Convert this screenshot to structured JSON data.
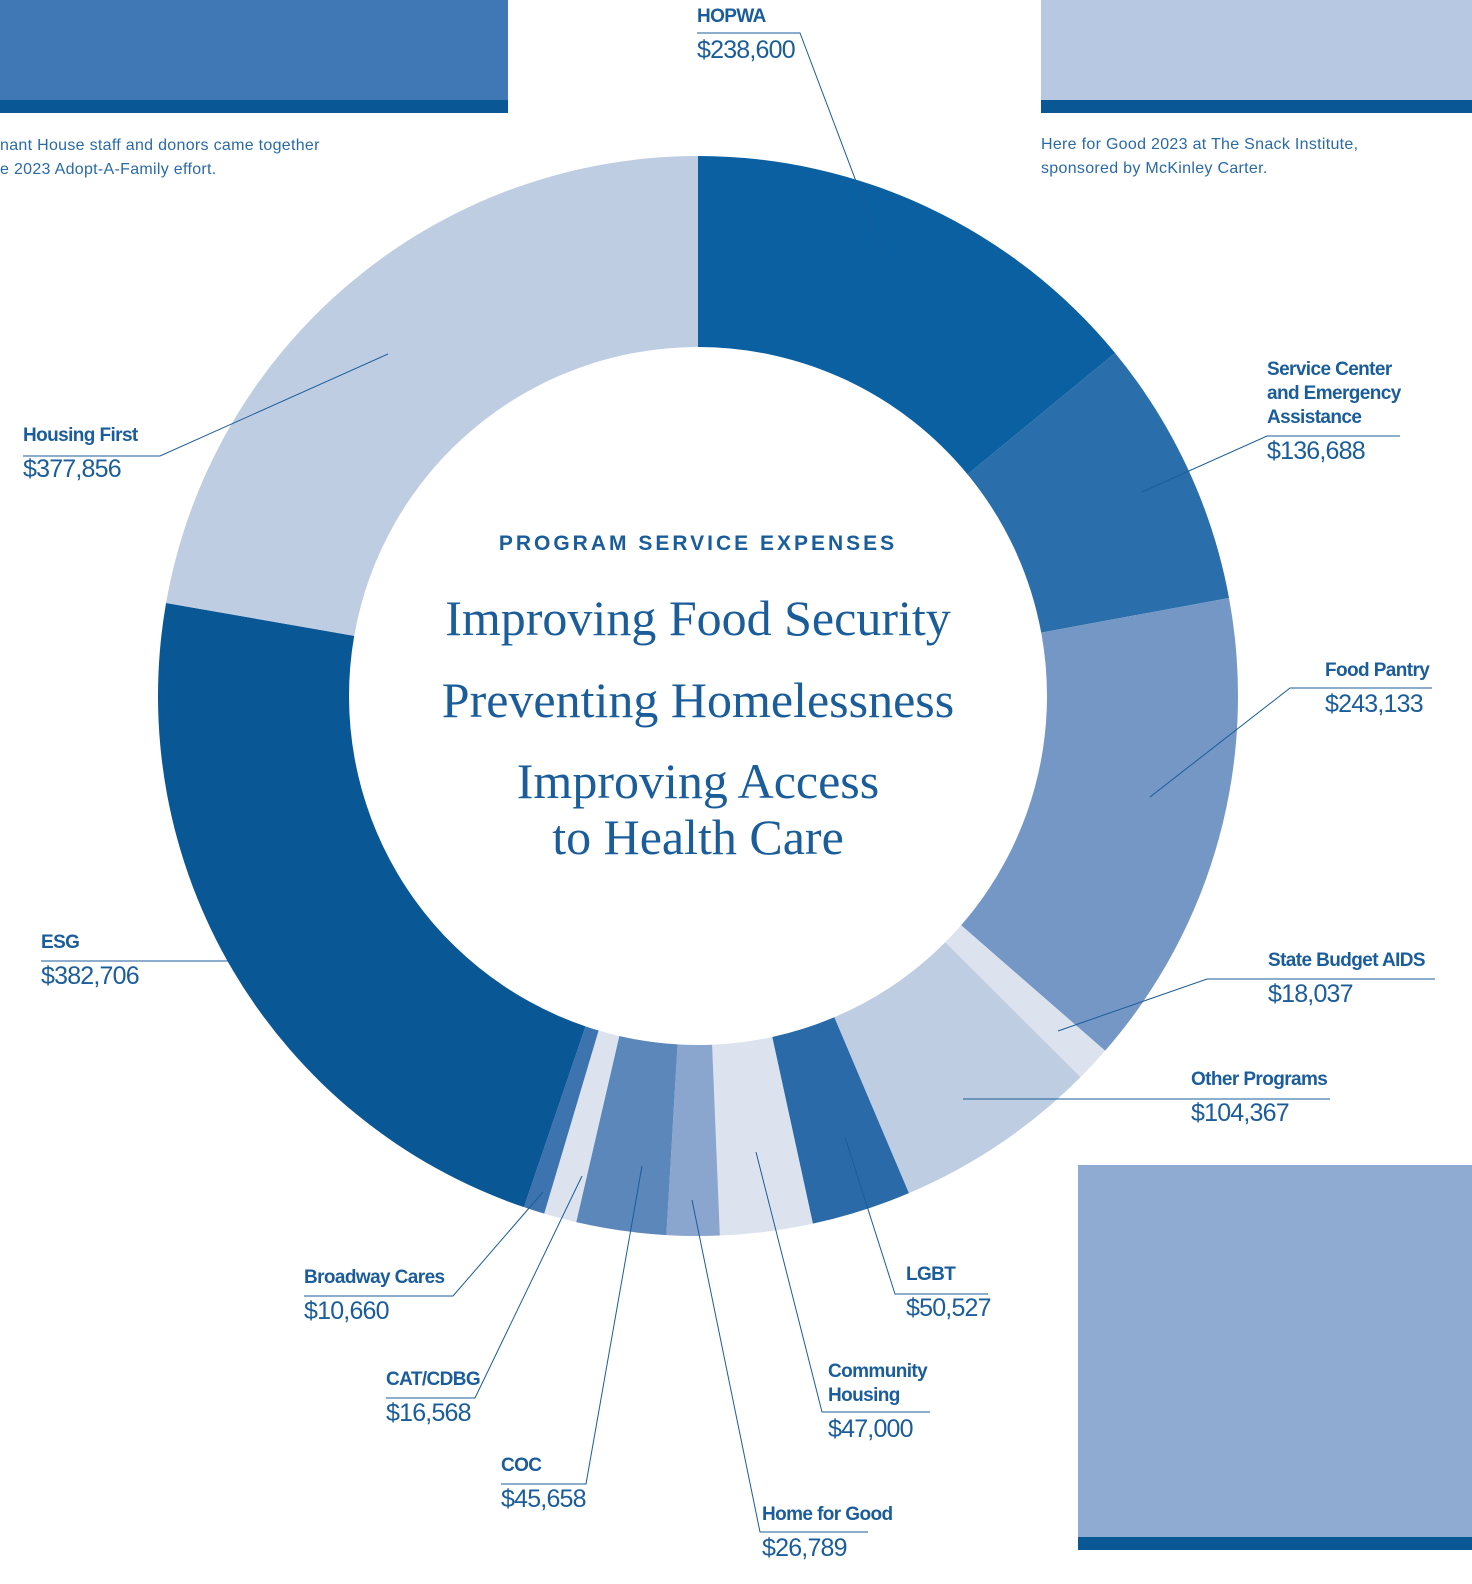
{
  "chart_data": {
    "type": "donut",
    "title": "PROGRAM SERVICE EXPENSES",
    "center_lines": [
      "Improving Food Security",
      "Preventing Homelessness",
      "Improving Access\nto Health Care"
    ],
    "categories": [
      "HOPWA",
      "Service Center\nand Emergency\nAssistance",
      "Food Pantry",
      "State Budget AIDS",
      "Other Programs",
      "LGBT",
      "Community\nHousing",
      "Home for Good",
      "COC",
      "CAT/CDBG",
      "Broadway Cares",
      "ESG",
      "Housing First"
    ],
    "values": [
      238600,
      136688,
      243133,
      18037,
      104367,
      50527,
      47000,
      26789,
      45658,
      16568,
      10660,
      382706,
      377856
    ],
    "value_labels": [
      "$238,600",
      "$136,688",
      "$243,133",
      "$18,037",
      "$104,367",
      "$50,527",
      "$47,000",
      "$26,789",
      "$45,658",
      "$16,568",
      "$10,660",
      "$382,706",
      "$377,856"
    ],
    "colors": [
      "#0a60a0",
      "#2a6fab",
      "#7497c5",
      "#dce3ef",
      "#bfcde3",
      "#2a6aa8",
      "#dce3ef",
      "#8aa6cf",
      "#5b87bb",
      "#dce3ef",
      "#3d74b0",
      "#0a5796",
      "#bfcde3"
    ]
  },
  "captions": [
    "nant House staff and donors came together\ne 2023 Adopt-A-Family effort.",
    "Here for Good 2023 at The Snack Institute,\nsponsored by McKinley Carter."
  ]
}
